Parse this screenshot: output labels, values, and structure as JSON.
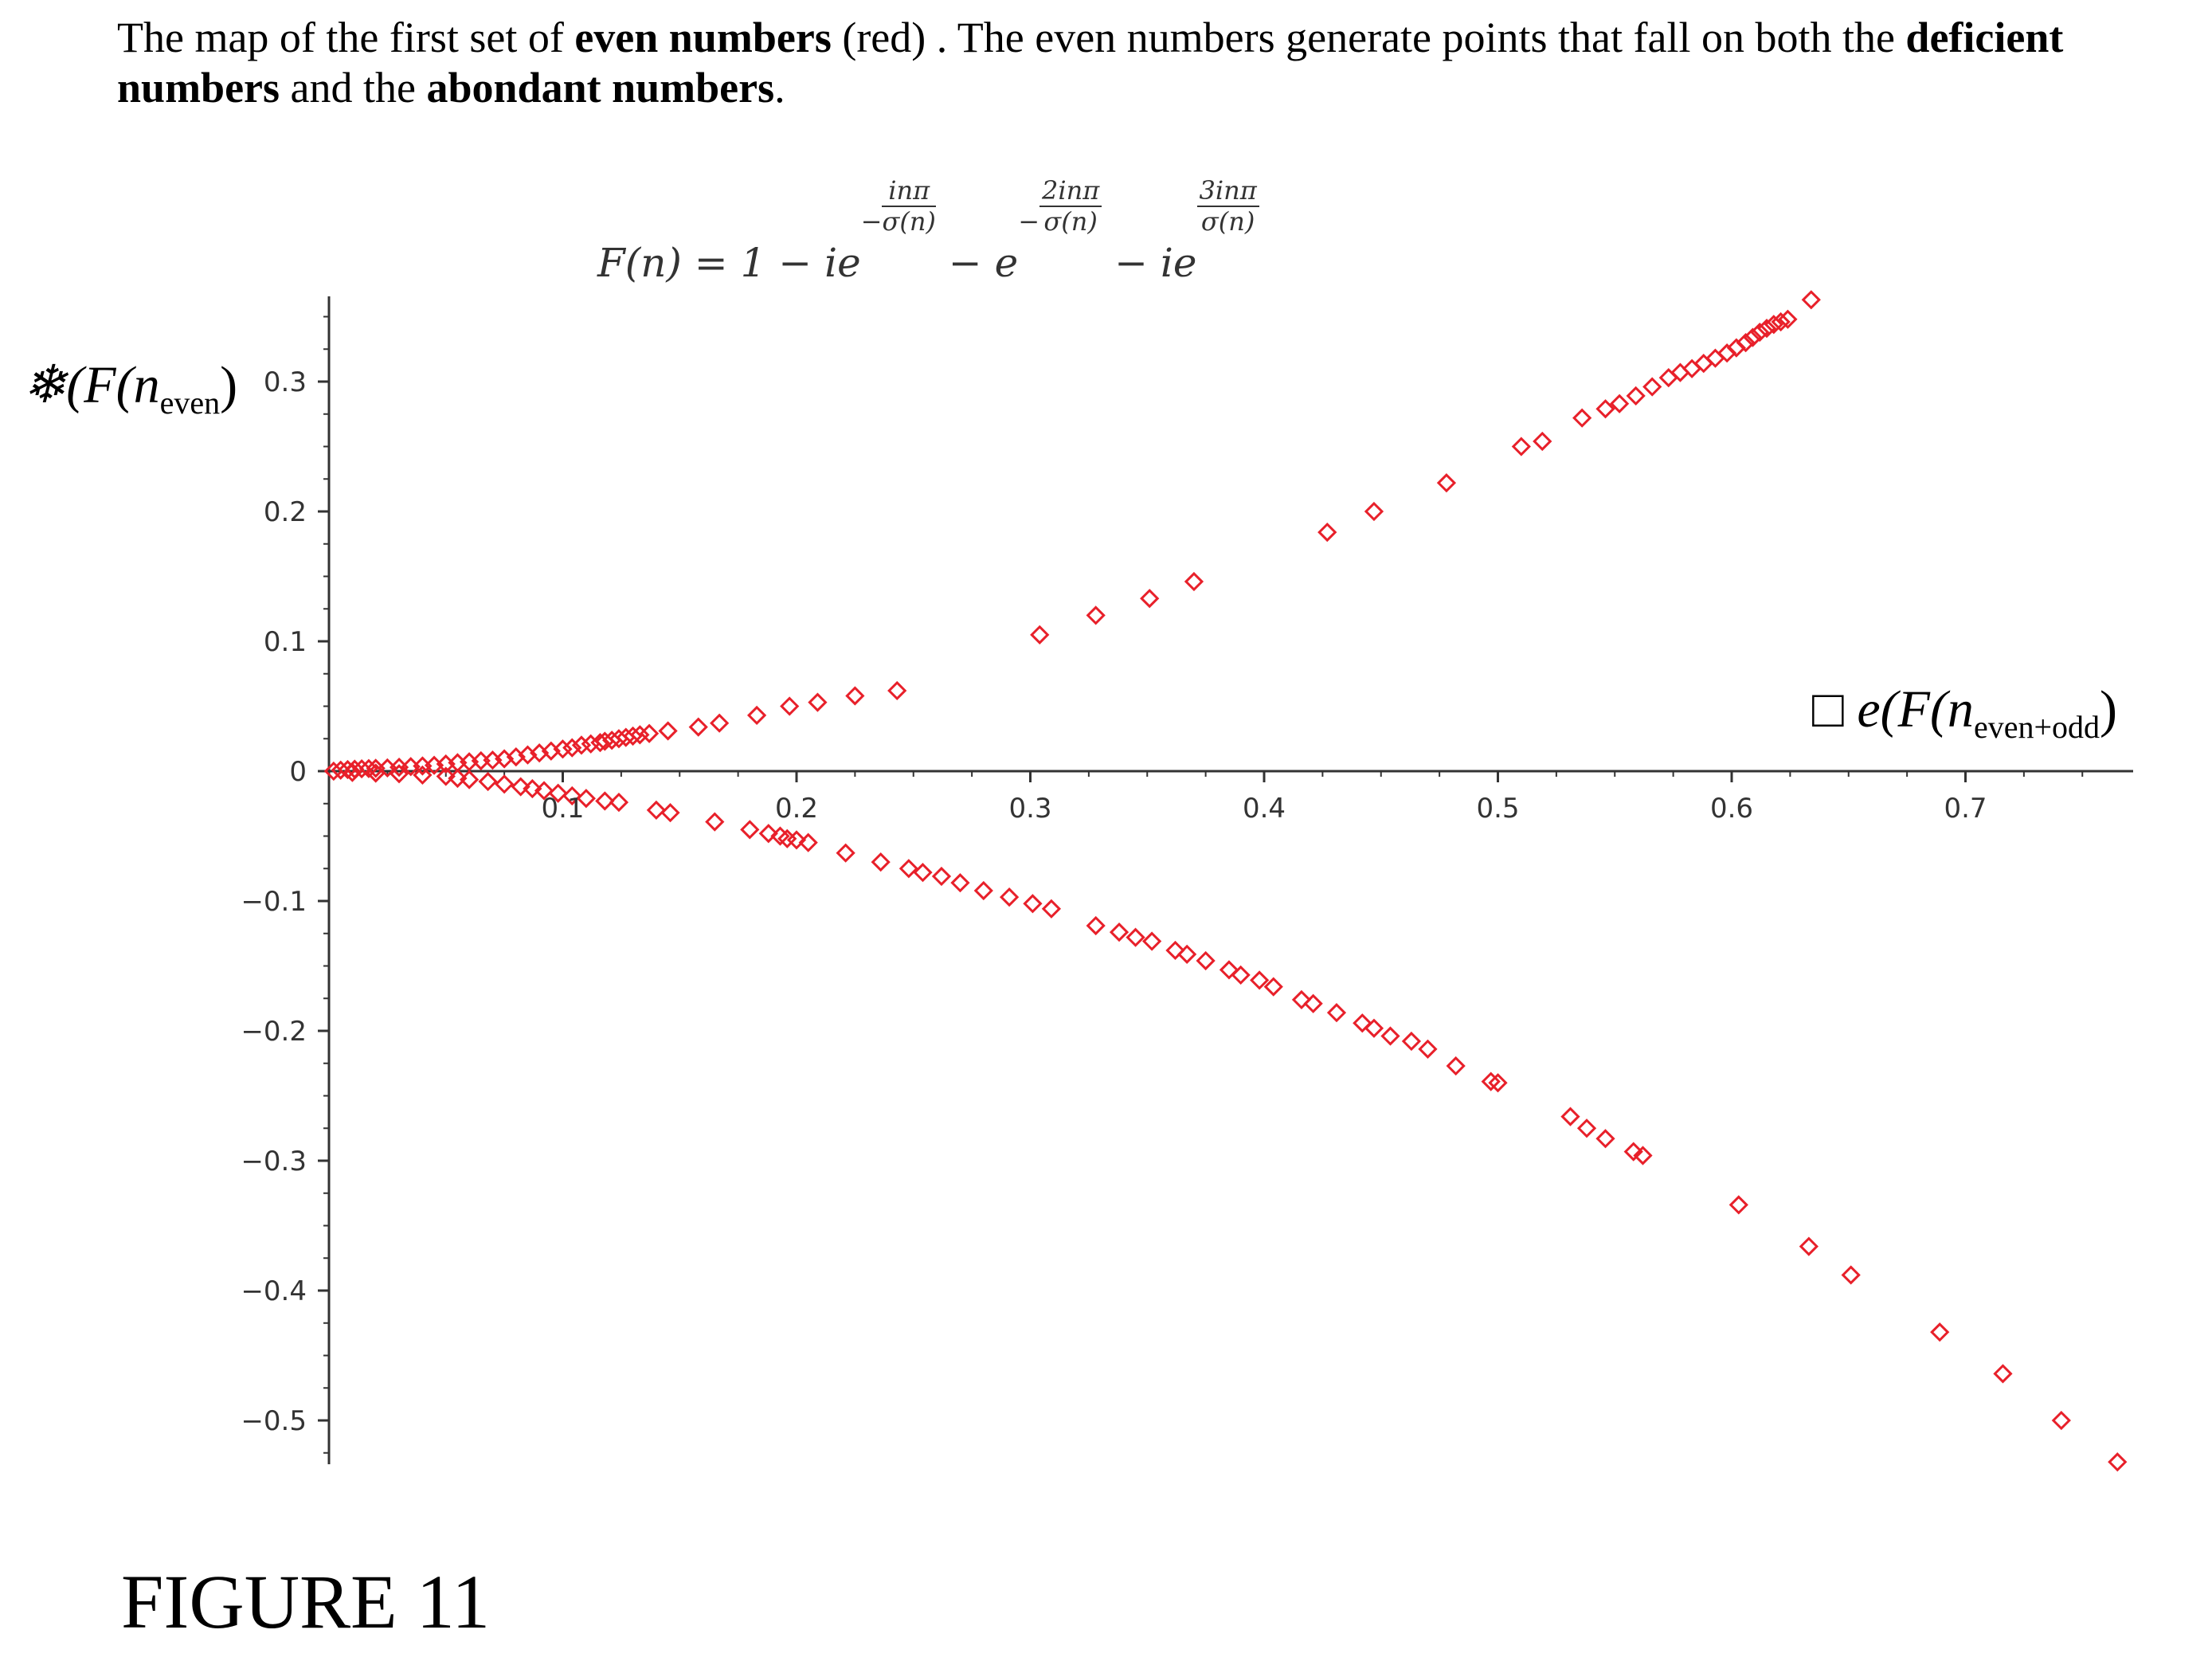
{
  "caption": {
    "part1": "The map of the first set of ",
    "bold1": "even numbers",
    "part2": " (red) . The even numbers generate points that fall on both the ",
    "bold2": "deficient numbers",
    "part3": " and the ",
    "bold3": "abondant numbers",
    "part4": "."
  },
  "figure_label": "FIGURE 11",
  "formula": {
    "lhs": "F(n) = 1 − ie",
    "exp1_num": "inπ",
    "exp1_den": "σ(n)",
    "mid": " − e",
    "exp2_num": "2inπ",
    "exp2_den": "σ(n)",
    "mid2": " − ie",
    "exp3_num": "3inπ",
    "exp3_den": "σ(n)",
    "minus": "−"
  },
  "chart_data": {
    "type": "scatter",
    "ylabel": "❄(F(n",
    "ylabel_sub": "even",
    "ylabel_close": ")",
    "xlabel": "□ e(F(n",
    "xlabel_sub": "even+odd",
    "xlabel_close": ")",
    "xlim": [
      0,
      0.775
    ],
    "ylim": [
      -0.53,
      0.37
    ],
    "xticks": [
      "0.1",
      "0.2",
      "0.3",
      "0.4",
      "0.5",
      "0.6",
      "0.7"
    ],
    "yticks": [
      "0.3",
      "0.2",
      "0.1",
      "0",
      "−0.1",
      "−0.2",
      "−0.3",
      "−0.4",
      "−0.5"
    ],
    "marker": "diamond-open",
    "color": "#e8202a",
    "upper_branch": [
      [
        0.002,
        0.0
      ],
      [
        0.005,
        0.0008
      ],
      [
        0.008,
        0.0012
      ],
      [
        0.011,
        0.0015
      ],
      [
        0.014,
        0.0018
      ],
      [
        0.017,
        0.002
      ],
      [
        0.02,
        0.0022
      ],
      [
        0.025,
        0.0025
      ],
      [
        0.03,
        0.003
      ],
      [
        0.035,
        0.0035
      ],
      [
        0.04,
        0.004
      ],
      [
        0.045,
        0.0045
      ],
      [
        0.05,
        0.0055
      ],
      [
        0.055,
        0.0065
      ],
      [
        0.06,
        0.0072
      ],
      [
        0.065,
        0.008
      ],
      [
        0.07,
        0.0085
      ],
      [
        0.075,
        0.0095
      ],
      [
        0.08,
        0.011
      ],
      [
        0.085,
        0.0125
      ],
      [
        0.09,
        0.014
      ],
      [
        0.095,
        0.0155
      ],
      [
        0.1,
        0.017
      ],
      [
        0.104,
        0.018
      ],
      [
        0.108,
        0.02
      ],
      [
        0.112,
        0.021
      ],
      [
        0.116,
        0.022
      ],
      [
        0.118,
        0.023
      ],
      [
        0.121,
        0.0238
      ],
      [
        0.124,
        0.025
      ],
      [
        0.127,
        0.026
      ],
      [
        0.13,
        0.027
      ],
      [
        0.133,
        0.028
      ],
      [
        0.137,
        0.029
      ],
      [
        0.145,
        0.031
      ],
      [
        0.158,
        0.034
      ],
      [
        0.167,
        0.037
      ],
      [
        0.183,
        0.043
      ],
      [
        0.197,
        0.05
      ],
      [
        0.209,
        0.053
      ],
      [
        0.225,
        0.058
      ],
      [
        0.243,
        0.062
      ],
      [
        0.304,
        0.105
      ],
      [
        0.328,
        0.12
      ],
      [
        0.351,
        0.133
      ],
      [
        0.37,
        0.146
      ],
      [
        0.427,
        0.184
      ],
      [
        0.447,
        0.2
      ],
      [
        0.478,
        0.222
      ],
      [
        0.51,
        0.25
      ],
      [
        0.519,
        0.254
      ],
      [
        0.536,
        0.272
      ],
      [
        0.546,
        0.279
      ],
      [
        0.552,
        0.283
      ],
      [
        0.559,
        0.289
      ],
      [
        0.566,
        0.296
      ],
      [
        0.573,
        0.303
      ],
      [
        0.578,
        0.307
      ],
      [
        0.583,
        0.31
      ],
      [
        0.588,
        0.314
      ],
      [
        0.593,
        0.318
      ],
      [
        0.598,
        0.322
      ],
      [
        0.602,
        0.326
      ],
      [
        0.606,
        0.33
      ],
      [
        0.609,
        0.334
      ],
      [
        0.612,
        0.338
      ],
      [
        0.615,
        0.341
      ],
      [
        0.618,
        0.344
      ],
      [
        0.621,
        0.346
      ],
      [
        0.624,
        0.348
      ],
      [
        0.634,
        0.363
      ]
    ],
    "lower_branch": [
      [
        0.01,
        -0.001
      ],
      [
        0.02,
        -0.0015
      ],
      [
        0.03,
        -0.002
      ],
      [
        0.04,
        -0.003
      ],
      [
        0.05,
        -0.004
      ],
      [
        0.055,
        -0.0055
      ],
      [
        0.06,
        -0.0065
      ],
      [
        0.068,
        -0.008
      ],
      [
        0.075,
        -0.01
      ],
      [
        0.082,
        -0.012
      ],
      [
        0.087,
        -0.0135
      ],
      [
        0.092,
        -0.015
      ],
      [
        0.098,
        -0.017
      ],
      [
        0.104,
        -0.019
      ],
      [
        0.11,
        -0.021
      ],
      [
        0.118,
        -0.023
      ],
      [
        0.124,
        -0.024
      ],
      [
        0.14,
        -0.03
      ],
      [
        0.146,
        -0.032
      ],
      [
        0.165,
        -0.039
      ],
      [
        0.18,
        -0.045
      ],
      [
        0.188,
        -0.048
      ],
      [
        0.193,
        -0.05
      ],
      [
        0.196,
        -0.052
      ],
      [
        0.2,
        -0.053
      ],
      [
        0.205,
        -0.055
      ],
      [
        0.221,
        -0.063
      ],
      [
        0.236,
        -0.07
      ],
      [
        0.248,
        -0.075
      ],
      [
        0.254,
        -0.078
      ],
      [
        0.262,
        -0.081
      ],
      [
        0.27,
        -0.086
      ],
      [
        0.28,
        -0.092
      ],
      [
        0.291,
        -0.097
      ],
      [
        0.301,
        -0.102
      ],
      [
        0.309,
        -0.106
      ],
      [
        0.328,
        -0.119
      ],
      [
        0.338,
        -0.124
      ],
      [
        0.345,
        -0.128
      ],
      [
        0.352,
        -0.131
      ],
      [
        0.362,
        -0.138
      ],
      [
        0.367,
        -0.141
      ],
      [
        0.375,
        -0.146
      ],
      [
        0.385,
        -0.153
      ],
      [
        0.39,
        -0.157
      ],
      [
        0.398,
        -0.161
      ],
      [
        0.404,
        -0.166
      ],
      [
        0.416,
        -0.176
      ],
      [
        0.421,
        -0.179
      ],
      [
        0.431,
        -0.186
      ],
      [
        0.442,
        -0.194
      ],
      [
        0.447,
        -0.198
      ],
      [
        0.454,
        -0.204
      ],
      [
        0.463,
        -0.208
      ],
      [
        0.47,
        -0.214
      ],
      [
        0.482,
        -0.227
      ],
      [
        0.497,
        -0.239
      ],
      [
        0.5,
        -0.24
      ],
      [
        0.531,
        -0.266
      ],
      [
        0.538,
        -0.275
      ],
      [
        0.546,
        -0.283
      ],
      [
        0.558,
        -0.293
      ],
      [
        0.562,
        -0.296
      ],
      [
        0.603,
        -0.334
      ],
      [
        0.633,
        -0.366
      ],
      [
        0.651,
        -0.388
      ],
      [
        0.689,
        -0.432
      ],
      [
        0.716,
        -0.464
      ],
      [
        0.741,
        -0.5
      ],
      [
        0.765,
        -0.532
      ]
    ]
  }
}
